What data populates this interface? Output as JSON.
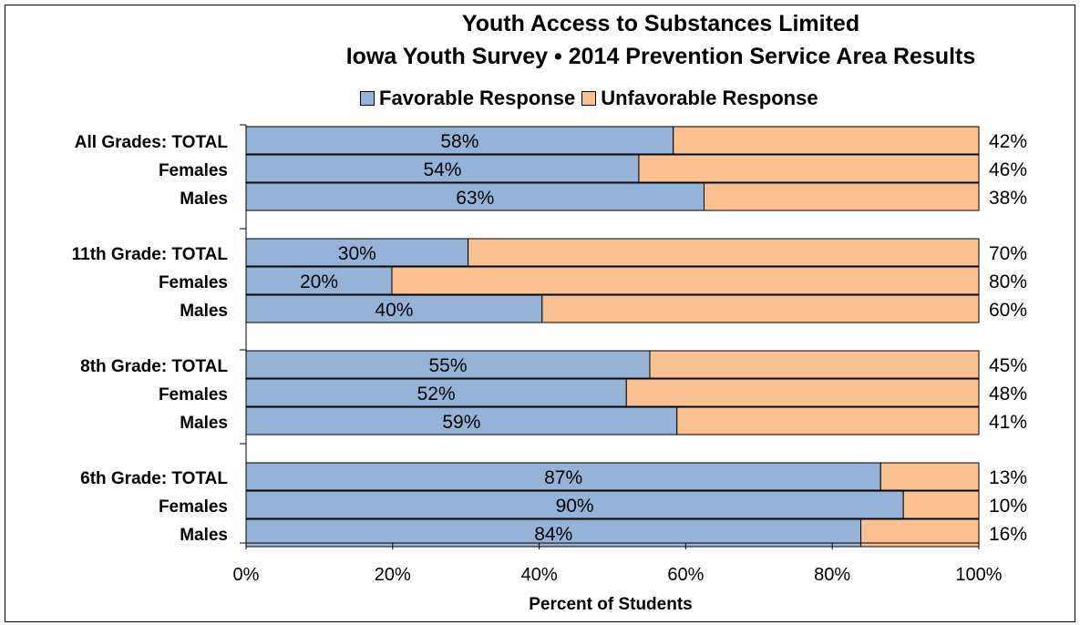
{
  "chart_data": {
    "type": "bar",
    "orientation": "horizontal",
    "stacked": true,
    "title": "Youth Access to Substances Limited",
    "subtitle": "Iowa Youth Survey • 2014 Prevention Service Area Results",
    "xlabel": "Percent of Students",
    "ylabel": "",
    "xlim": [
      0,
      100
    ],
    "x_ticks": [
      "0%",
      "20%",
      "40%",
      "60%",
      "80%",
      "100%"
    ],
    "legend_position": "top",
    "grid": false,
    "categories": [
      "All Grades:  TOTAL",
      "Females",
      "Males",
      "11th Grade:  TOTAL",
      "Females",
      "Males",
      "8th Grade:  TOTAL",
      "Females",
      "Males",
      "6th Grade:  TOTAL",
      "Females",
      "Males"
    ],
    "series": [
      {
        "name": "Favorable Response",
        "color": "#95b3d7",
        "values": [
          58.3,
          53.6,
          62.5,
          30.3,
          19.9,
          40.4,
          55.1,
          51.9,
          58.8,
          86.6,
          89.7,
          83.9
        ],
        "labels": [
          "58%",
          "54%",
          "63%",
          "30%",
          "20%",
          "40%",
          "55%",
          "52%",
          "59%",
          "87%",
          "90%",
          "84%"
        ]
      },
      {
        "name": "Unfavorable Response",
        "color": "#fac090",
        "values": [
          41.7,
          46.4,
          37.5,
          69.7,
          80.1,
          59.6,
          44.9,
          48.1,
          41.2,
          13.4,
          10.3,
          16.1
        ],
        "labels": [
          "42%",
          "46%",
          "38%",
          "70%",
          "80%",
          "60%",
          "45%",
          "48%",
          "41%",
          "13%",
          "10%",
          "16%"
        ]
      }
    ]
  }
}
